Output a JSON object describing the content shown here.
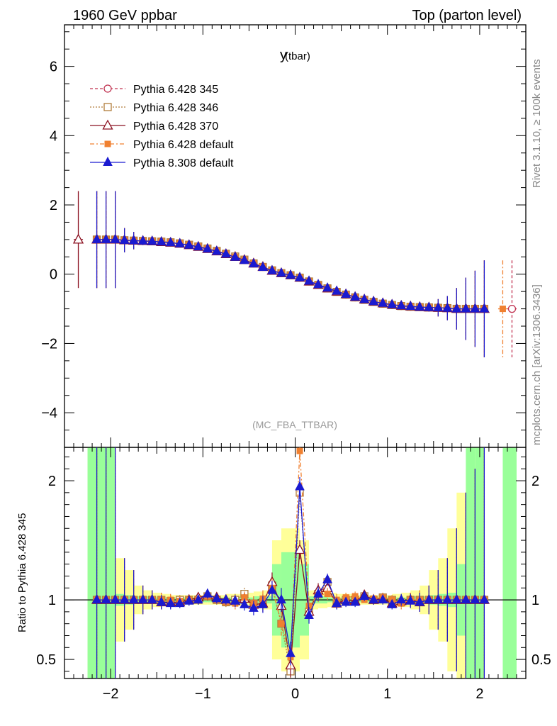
{
  "header": {
    "left": "1960 GeV ppbar",
    "right": "Top (parton level)"
  },
  "side_labels": {
    "rivet": "Rivet 3.1.10, ≥ 100k events",
    "mcplots": "mcplots.cern.ch [arXiv:1306.3436]"
  },
  "chart_data": [
    {
      "type": "line",
      "title": "y",
      "title_sub": "(tbar)",
      "annotation": "(MC_FBA_TTBAR)",
      "xlim": [
        -2.5,
        2.5
      ],
      "ylim": [
        -5,
        7.2
      ],
      "x_ticks": [
        -2,
        -1,
        0,
        1,
        2
      ],
      "x_tick_labels": [
        "−2",
        "−1",
        "0",
        "1",
        "2"
      ],
      "y_ticks": [
        -4,
        -2,
        0,
        2,
        4,
        6
      ],
      "y_tick_labels": [
        "−4",
        "−2",
        "0",
        "2",
        "4",
        "6"
      ],
      "legend_position": "top-left",
      "x": [
        -2.15,
        -2.05,
        -1.95,
        -1.85,
        -1.75,
        -1.65,
        -1.55,
        -1.45,
        -1.35,
        -1.25,
        -1.15,
        -1.05,
        -0.95,
        -0.85,
        -0.75,
        -0.65,
        -0.55,
        -0.45,
        -0.35,
        -0.25,
        -0.15,
        -0.05,
        0.05,
        0.15,
        0.25,
        0.35,
        0.45,
        0.55,
        0.65,
        0.75,
        0.85,
        0.95,
        1.05,
        1.15,
        1.25,
        1.35,
        1.45,
        1.55,
        1.65,
        1.75,
        1.85,
        1.95,
        2.05
      ],
      "series": [
        {
          "name": "Pythia 6.428 345",
          "color": "#c0304f",
          "marker": "open-circle",
          "dash": "4,3",
          "y": [
            1.0,
            1.0,
            1.0,
            0.98,
            0.97,
            0.96,
            0.95,
            0.94,
            0.92,
            0.89,
            0.85,
            0.8,
            0.74,
            0.67,
            0.59,
            0.5,
            0.41,
            0.31,
            0.21,
            0.1,
            0.03,
            -0.03,
            -0.1,
            -0.21,
            -0.31,
            -0.41,
            -0.5,
            -0.59,
            -0.67,
            -0.74,
            -0.8,
            -0.85,
            -0.89,
            -0.92,
            -0.94,
            -0.95,
            -0.96,
            -0.97,
            -0.98,
            -1.0,
            -1.0,
            -1.0,
            -1.0
          ],
          "extra_points": [
            {
              "x": 2.35,
              "y": -1.0,
              "err": 1.4
            }
          ]
        },
        {
          "name": "Pythia 6.428 346",
          "color": "#b07c3a",
          "marker": "open-square",
          "dash": "2,2",
          "y": [
            1.0,
            1.0,
            1.0,
            0.98,
            0.97,
            0.96,
            0.95,
            0.94,
            0.92,
            0.89,
            0.85,
            0.8,
            0.74,
            0.67,
            0.59,
            0.51,
            0.42,
            0.31,
            0.21,
            0.11,
            0.03,
            -0.03,
            -0.1,
            -0.21,
            -0.31,
            -0.41,
            -0.51,
            -0.59,
            -0.67,
            -0.74,
            -0.8,
            -0.85,
            -0.89,
            -0.92,
            -0.94,
            -0.95,
            -0.96,
            -0.97,
            -0.98,
            -1.0,
            -1.0,
            -1.0,
            -1.0
          ]
        },
        {
          "name": "Pythia 6.428 370",
          "color": "#8b1020",
          "marker": "open-triangle",
          "dash": "",
          "y": [
            1.0,
            1.0,
            1.0,
            0.98,
            0.97,
            0.96,
            0.95,
            0.93,
            0.91,
            0.88,
            0.84,
            0.79,
            0.73,
            0.66,
            0.58,
            0.5,
            0.41,
            0.31,
            0.21,
            0.1,
            0.03,
            -0.03,
            -0.1,
            -0.21,
            -0.31,
            -0.41,
            -0.5,
            -0.58,
            -0.66,
            -0.73,
            -0.79,
            -0.84,
            -0.88,
            -0.91,
            -0.93,
            -0.95,
            -0.96,
            -0.97,
            -0.98,
            -1.0,
            -1.0,
            -1.0,
            -1.0
          ],
          "extra_points": [
            {
              "x": -2.35,
              "y": 1.0,
              "err": 1.4
            }
          ]
        },
        {
          "name": "Pythia 6.428 default",
          "color": "#f08030",
          "marker": "filled-square",
          "dash": "6,3,2,3",
          "y": [
            1.0,
            1.0,
            1.0,
            0.98,
            0.97,
            0.96,
            0.95,
            0.94,
            0.92,
            0.89,
            0.85,
            0.8,
            0.74,
            0.67,
            0.59,
            0.5,
            0.41,
            0.31,
            0.22,
            0.11,
            0.03,
            -0.03,
            -0.1,
            -0.21,
            -0.31,
            -0.41,
            -0.5,
            -0.59,
            -0.67,
            -0.74,
            -0.8,
            -0.85,
            -0.89,
            -0.92,
            -0.94,
            -0.95,
            -0.96,
            -0.97,
            -0.98,
            -1.0,
            -1.0,
            -1.0,
            -1.0
          ],
          "extra_points": [
            {
              "x": 2.25,
              "y": -1.0,
              "err": 1.4
            }
          ]
        },
        {
          "name": "Pythia 8.308 default",
          "color": "#1a1ad0",
          "marker": "filled-triangle",
          "dash": "",
          "y": [
            1.0,
            1.0,
            1.0,
            0.98,
            0.97,
            0.96,
            0.95,
            0.93,
            0.91,
            0.88,
            0.84,
            0.79,
            0.73,
            0.66,
            0.58,
            0.49,
            0.4,
            0.3,
            0.2,
            0.1,
            0.03,
            -0.03,
            -0.1,
            -0.2,
            -0.3,
            -0.4,
            -0.49,
            -0.58,
            -0.66,
            -0.73,
            -0.79,
            -0.84,
            -0.88,
            -0.91,
            -0.93,
            -0.95,
            -0.96,
            -0.97,
            -0.98,
            -1.0,
            -1.0,
            -1.0,
            -1.0
          ],
          "errors": [
            1.4,
            1.4,
            1.4,
            0.35,
            0.25,
            0.12,
            0.08,
            0.06,
            0.05,
            0.04,
            0.04,
            0.04,
            0.04,
            0.04,
            0.04,
            0.05,
            0.05,
            0.06,
            0.07,
            0.08,
            0.1,
            0.1,
            0.08,
            0.07,
            0.06,
            0.05,
            0.05,
            0.04,
            0.04,
            0.04,
            0.04,
            0.04,
            0.04,
            0.05,
            0.06,
            0.08,
            0.12,
            0.25,
            0.35,
            0.6,
            0.9,
            1.1,
            1.4
          ]
        }
      ]
    },
    {
      "type": "line",
      "ylabel": "Ratio to Pythia 6.428 345",
      "xlim": [
        -2.5,
        2.5
      ],
      "ylim": [
        0.34,
        2.28
      ],
      "y_ticks": [
        0.5,
        1,
        2
      ],
      "y_tick_labels": [
        "0.5",
        "1",
        "2"
      ],
      "band_x": [
        -2.2,
        -2.1,
        -2.0,
        -1.9,
        -1.8,
        -1.7,
        -1.6,
        -1.5,
        -1.4,
        -1.3,
        -1.2,
        -1.1,
        -1.0,
        -0.9,
        -0.8,
        -0.7,
        -0.6,
        -0.5,
        -0.4,
        -0.3,
        -0.2,
        -0.1,
        0.0,
        0.1,
        0.2,
        0.3,
        0.4,
        0.5,
        0.6,
        0.7,
        0.8,
        0.9,
        1.0,
        1.1,
        1.2,
        1.3,
        1.4,
        1.5,
        1.6,
        1.7,
        1.8,
        1.9,
        2.0,
        2.1
      ],
      "band_yellow": [
        1.4,
        1.4,
        1.4,
        0.35,
        0.25,
        0.12,
        0.08,
        0.06,
        0.05,
        0.04,
        0.04,
        0.04,
        0.04,
        0.04,
        0.04,
        0.05,
        0.05,
        0.06,
        0.07,
        0.08,
        0.5,
        0.6,
        0.6,
        0.5,
        0.08,
        0.07,
        0.06,
        0.05,
        0.05,
        0.04,
        0.04,
        0.04,
        0.04,
        0.05,
        0.06,
        0.08,
        0.12,
        0.25,
        0.35,
        0.6,
        0.9,
        1.1,
        1.4
      ],
      "band_green": [
        1.4,
        1.4,
        1.4,
        0.05,
        0.04,
        0.03,
        0.03,
        0.02,
        0.02,
        0.02,
        0.02,
        0.02,
        0.02,
        0.02,
        0.02,
        0.02,
        0.02,
        0.02,
        0.03,
        0.03,
        0.3,
        0.4,
        0.4,
        0.3,
        0.03,
        0.03,
        0.02,
        0.02,
        0.02,
        0.02,
        0.02,
        0.02,
        0.02,
        0.02,
        0.02,
        0.03,
        0.03,
        0.04,
        0.05,
        0.06,
        0.3,
        1.4,
        1.4
      ],
      "series": [
        {
          "name": "Pythia 6.428 346",
          "y": [
            1.0,
            1.0,
            1.0,
            1.0,
            1.0,
            1.0,
            1.0,
            1.0,
            0.99,
            1.0,
            1.0,
            1.0,
            1.03,
            1.0,
            0.98,
            1.0,
            1.05,
            0.97,
            0.98,
            1.12,
            0.8,
            0.4,
            1.9,
            0.9,
            1.05,
            1.15,
            0.97,
            1.0,
            1.0,
            1.03,
            1.0,
            1.02,
            1.0,
            0.98,
            1.0,
            1.0,
            1.0,
            1.0,
            1.0,
            1.0,
            1.0,
            1.0,
            1.0
          ]
        },
        {
          "name": "Pythia 6.428 370",
          "y": [
            1.0,
            1.0,
            1.0,
            1.0,
            1.0,
            1.0,
            1.0,
            0.98,
            0.98,
            0.98,
            1.0,
            1.02,
            1.04,
            1.02,
            1.0,
            0.99,
            1.01,
            0.96,
            0.97,
            1.15,
            0.95,
            0.45,
            1.42,
            0.9,
            1.08,
            1.1,
            0.97,
            1.0,
            0.99,
            1.04,
            1.0,
            1.01,
            0.97,
            0.99,
            1.0,
            0.98,
            1.0,
            1.0,
            1.0,
            1.0,
            1.0,
            1.0,
            1.0
          ]
        },
        {
          "name": "Pythia 6.428 default",
          "y": [
            1.0,
            1.0,
            1.0,
            1.0,
            1.0,
            1.0,
            1.0,
            1.0,
            1.0,
            0.99,
            1.0,
            1.0,
            1.03,
            1.0,
            0.98,
            0.97,
            1.02,
            0.97,
            1.01,
            1.1,
            0.8,
            0.52,
            2.25,
            0.95,
            1.04,
            1.05,
            1.0,
            1.02,
            1.03,
            1.0,
            1.01,
            1.02,
            1.0,
            0.97,
            1.0,
            1.0,
            1.0,
            1.0,
            1.0,
            1.0,
            1.0,
            1.0,
            1.0
          ]
        },
        {
          "name": "Pythia 8.308 default",
          "y": [
            1.0,
            1.0,
            1.0,
            1.0,
            1.0,
            1.0,
            1.0,
            0.98,
            0.97,
            0.97,
            0.99,
            1.0,
            1.05,
            1.01,
            1.0,
            0.99,
            0.96,
            0.93,
            0.96,
            1.08,
            1.0,
            0.55,
            1.95,
            0.87,
            1.05,
            1.17,
            0.97,
            0.98,
            0.98,
            1.03,
            1.0,
            1.0,
            0.96,
            1.0,
            0.99,
            0.98,
            1.0,
            1.0,
            1.0,
            1.0,
            1.0,
            1.0,
            1.0
          ]
        }
      ]
    }
  ]
}
